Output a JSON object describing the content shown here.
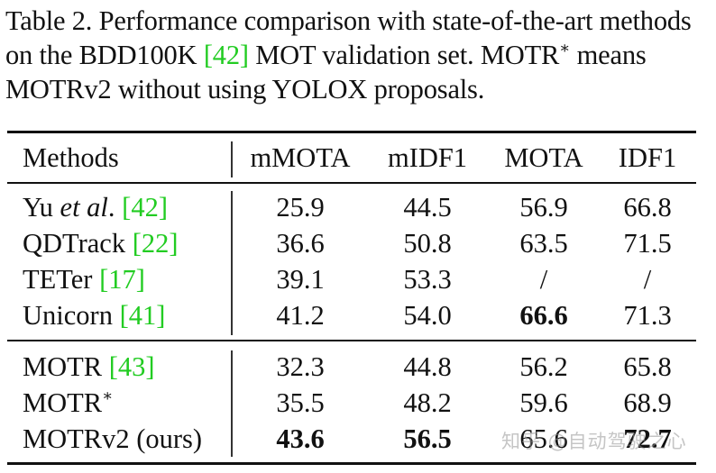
{
  "caption": {
    "part1": "Table 2. Performance comparison with state-of-the-art methods on the BDD100K ",
    "ref": "[42]",
    "part2": " MOT validation set. MOTR",
    "sup": "∗",
    "part3": " means MOTRv2 without using YOLOX proposals."
  },
  "table": {
    "headers": [
      "Methods",
      "mMOTA",
      "mIDF1",
      "MOTA",
      "IDF1"
    ],
    "group1": [
      {
        "name_pre": "Yu ",
        "name_em": "et al",
        "name_post": ". ",
        "ref": "[42]",
        "values": [
          "25.9",
          "44.5",
          "56.9",
          "66.8"
        ]
      },
      {
        "name_pre": "QDTrack ",
        "ref": "[22]",
        "values": [
          "36.6",
          "50.8",
          "63.5",
          "71.5"
        ]
      },
      {
        "name_pre": "TETer ",
        "ref": "[17]",
        "values": [
          "39.1",
          "53.3",
          "/",
          "/"
        ]
      },
      {
        "name_pre": "Unicorn ",
        "ref": "[41]",
        "values": [
          "41.2",
          "54.0",
          "66.6",
          "71.3"
        ],
        "bold": [
          false,
          false,
          true,
          false
        ]
      }
    ],
    "group2": [
      {
        "name_pre": "MOTR ",
        "ref": "[43]",
        "values": [
          "32.3",
          "44.8",
          "56.2",
          "65.8"
        ]
      },
      {
        "name_pre": "MOTR",
        "sup": "∗",
        "values": [
          "35.5",
          "48.2",
          "59.6",
          "68.9"
        ]
      },
      {
        "name_pre": "MOTRv2 (ours)",
        "values": [
          "43.6",
          "56.5",
          "65.6",
          "72.7"
        ],
        "bold": [
          true,
          true,
          false,
          true
        ]
      }
    ]
  },
  "colors": {
    "citation": "#22cc22",
    "text": "#111111"
  },
  "watermark": "知乎 @自动驾驶之心"
}
